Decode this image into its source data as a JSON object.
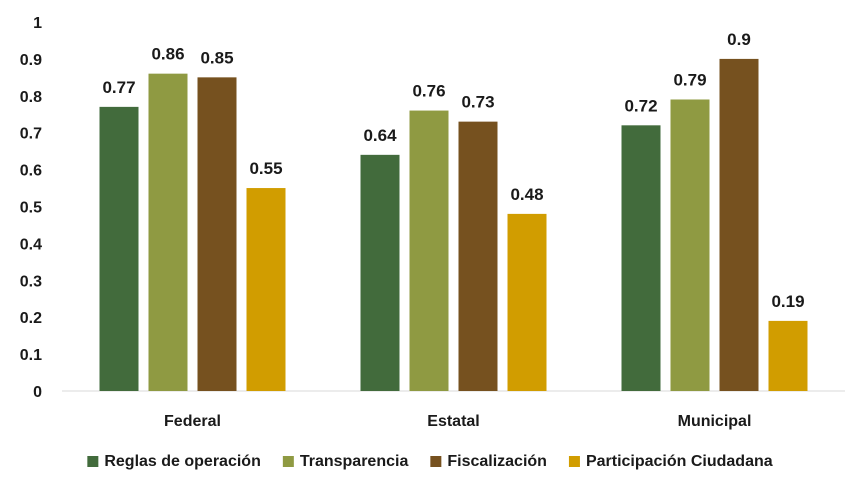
{
  "chart_data": {
    "type": "bar",
    "categories": [
      "Federal",
      "Estatal",
      "Municipal"
    ],
    "series": [
      {
        "name": "Reglas de operación",
        "color": "#426b3c",
        "values": [
          0.77,
          0.64,
          0.72
        ],
        "labels": [
          "0.77",
          "0.64",
          "0.72"
        ]
      },
      {
        "name": "Transparencia",
        "color": "#8f9a42",
        "values": [
          0.86,
          0.76,
          0.79
        ],
        "labels": [
          "0.86",
          "0.76",
          "0.79"
        ]
      },
      {
        "name": "Fiscalización",
        "color": "#76511f",
        "values": [
          0.85,
          0.73,
          0.9
        ],
        "labels": [
          "0.85",
          "0.73",
          "0.9"
        ]
      },
      {
        "name": "Participación Ciudadana",
        "color": "#d19d00",
        "values": [
          0.55,
          0.48,
          0.19
        ],
        "labels": [
          "0.55",
          "0.48",
          "0.19"
        ]
      }
    ],
    "yticks": [
      "0",
      "0.1",
      "0.2",
      "0.3",
      "0.4",
      "0.5",
      "0.6",
      "0.7",
      "0.8",
      "0.9",
      "1"
    ],
    "ylim": [
      0,
      1
    ],
    "grid": false,
    "legend_position": "bottom"
  }
}
